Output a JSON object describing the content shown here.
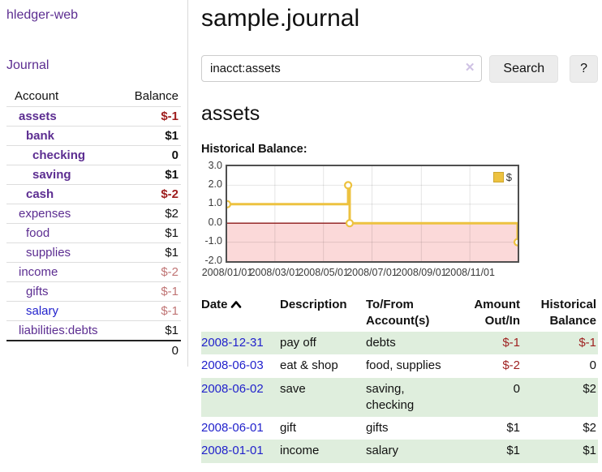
{
  "app": {
    "title": "hledger-web"
  },
  "sidebar": {
    "nav_journal": "Journal",
    "table": {
      "headers": [
        "Account",
        "Balance"
      ],
      "rows": [
        {
          "account": "assets",
          "balance": "$-1",
          "indent": 1,
          "bold": true,
          "tone": "neg-strong",
          "link_color": "purple"
        },
        {
          "account": "bank",
          "balance": "$1",
          "indent": 2,
          "bold": true,
          "tone": "",
          "link_color": "purple"
        },
        {
          "account": "checking",
          "balance": "0",
          "indent": 3,
          "bold": true,
          "tone": "",
          "link_color": "purple"
        },
        {
          "account": "saving",
          "balance": "$1",
          "indent": 3,
          "bold": true,
          "tone": "",
          "link_color": "purple"
        },
        {
          "account": "cash",
          "balance": "$-2",
          "indent": 2,
          "bold": true,
          "tone": "neg-strong",
          "link_color": "purple"
        },
        {
          "account": "expenses",
          "balance": "$2",
          "indent": 1,
          "bold": false,
          "tone": "",
          "link_color": "purple"
        },
        {
          "account": "food",
          "balance": "$1",
          "indent": 2,
          "bold": false,
          "tone": "",
          "link_color": "purple"
        },
        {
          "account": "supplies",
          "balance": "$1",
          "indent": 2,
          "bold": false,
          "tone": "",
          "link_color": "purple"
        },
        {
          "account": "income",
          "balance": "$-2",
          "indent": 1,
          "bold": false,
          "tone": "neg-soft",
          "link_color": "purple"
        },
        {
          "account": "gifts",
          "balance": "$-1",
          "indent": 2,
          "bold": false,
          "tone": "neg-soft",
          "link_color": "purple"
        },
        {
          "account": "salary",
          "balance": "$-1",
          "indent": 2,
          "bold": false,
          "tone": "neg-soft",
          "link_color": "blue"
        },
        {
          "account": "liabilities:debts",
          "balance": "$1",
          "indent": 1,
          "bold": false,
          "tone": "",
          "link_color": "purple"
        }
      ],
      "total": "0"
    }
  },
  "main": {
    "title": "sample.journal",
    "search": {
      "value": "inacct:assets",
      "clear_icon": "✕",
      "button_label": "Search",
      "help_label": "?"
    },
    "account_heading": "assets",
    "chart_title": "Historical Balance:"
  },
  "chart_data": {
    "type": "line",
    "title": "Historical Balance",
    "step": true,
    "series": [
      {
        "name": "$",
        "color": "#edc240",
        "points": [
          [
            "2008-01-01",
            1.0
          ],
          [
            "2008-06-01",
            2.0
          ],
          [
            "2008-06-03",
            0.0
          ],
          [
            "2008-12-31",
            -1.0
          ]
        ]
      }
    ],
    "ylim": [
      -2.0,
      3.0
    ],
    "yticks": [
      3.0,
      2.0,
      1.0,
      0.0,
      -1.0,
      -2.0
    ],
    "xticks": [
      "2008/01/01",
      "2008/03/01",
      "2008/05/01",
      "2008/07/01",
      "2008/09/01",
      "2008/11/01"
    ],
    "x_start": "2008-01-01",
    "x_end": "2008-12-31",
    "grid": true,
    "negative_region_color": "#fbd9d9",
    "zero_line_color": "#8e1a1a",
    "point_fill": "#ffffff",
    "legend": {
      "label": "$",
      "position": "top-right"
    }
  },
  "register": {
    "headers": [
      "Date",
      "Description",
      "To/From Account(s)",
      "Amount Out/In",
      "Historical Balance"
    ],
    "rows": [
      {
        "date": "2008-12-31",
        "description": "pay off",
        "accounts": "debts",
        "amount": "$-1",
        "balance": "$-1"
      },
      {
        "date": "2008-06-03",
        "description": "eat & shop",
        "accounts": "food, supplies",
        "amount": "$-2",
        "balance": "0"
      },
      {
        "date": "2008-06-02",
        "description": "save",
        "accounts": "saving, checking",
        "amount": "0",
        "balance": "$2"
      },
      {
        "date": "2008-06-01",
        "description": "gift",
        "accounts": "gifts",
        "amount": "$1",
        "balance": "$2"
      },
      {
        "date": "2008-01-01",
        "description": "income",
        "accounts": "salary",
        "amount": "$1",
        "balance": "$1"
      }
    ]
  }
}
